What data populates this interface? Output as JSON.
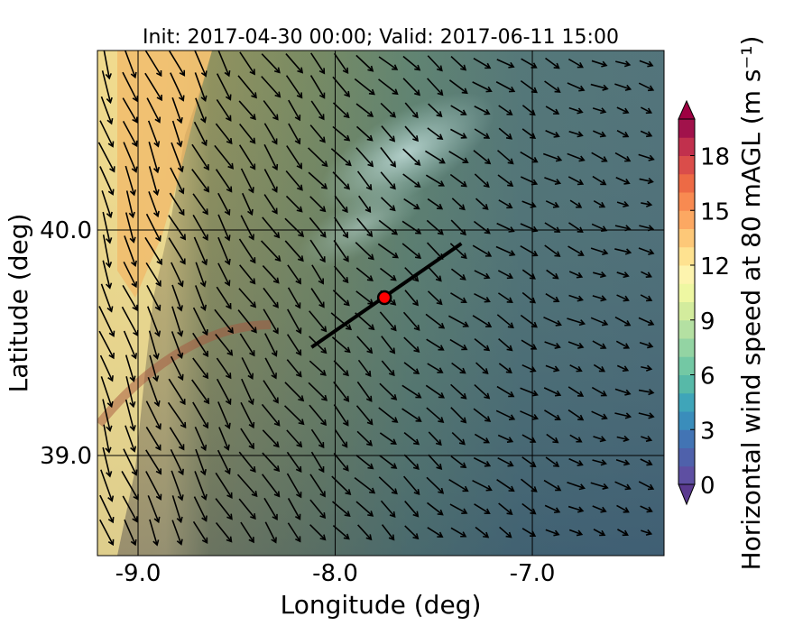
{
  "chart_data": {
    "type": "map",
    "title": "Init: 2017-04-30 00:00; Valid: 2017-06-11 15:00",
    "x_label": "Longitude (deg)",
    "y_label": "Latitude (deg)",
    "xlim": [
      -9.206,
      -6.332
    ],
    "ylim": [
      38.556,
      40.796
    ],
    "xticks": [
      {
        "value": -9,
        "label": "-9.0"
      },
      {
        "value": -8,
        "label": "-8.0"
      },
      {
        "value": -7,
        "label": "-7.0"
      }
    ],
    "yticks": [
      {
        "value": 39,
        "label": "39.0"
      },
      {
        "value": 40,
        "label": "40.0"
      }
    ],
    "grid": true,
    "transect": {
      "lon": [
        -8.12,
        -7.36
      ],
      "lat": [
        39.48,
        39.94
      ],
      "color": "#000000"
    },
    "site": {
      "lon": -7.75,
      "lat": 39.7,
      "color": "#ff0000"
    },
    "colorbar": {
      "label": "Horizontal wind speed at 80 mAGL (m s⁻¹)",
      "lim": [
        0,
        20
      ],
      "ticks": [
        0,
        3,
        6,
        9,
        12,
        15,
        18
      ],
      "colors": [
        "#5e4fa2",
        "#4f61ab",
        "#4274b4",
        "#3a8dbb",
        "#3fa5b9",
        "#57b9a8",
        "#73c8a4",
        "#93d4a3",
        "#b4e0a2",
        "#d3ec9d",
        "#eef7a2",
        "#fdf4ae",
        "#fee290",
        "#fdc878",
        "#fca862",
        "#f88a51",
        "#ed6a45",
        "#da4d4a",
        "#c1304d",
        "#a1124b"
      ],
      "under_color": "#5a3a8f",
      "over_color": "#9e0142"
    }
  }
}
